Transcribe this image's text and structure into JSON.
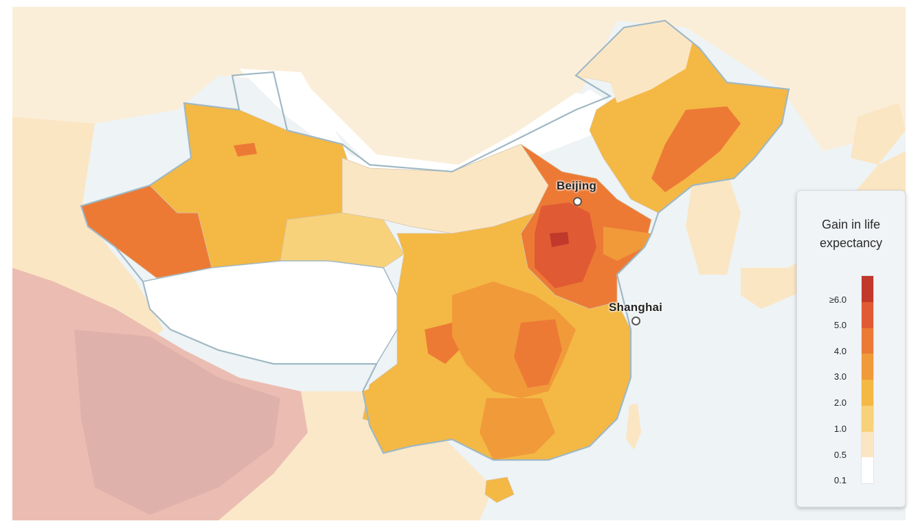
{
  "map": {
    "cities": [
      {
        "name": "Beijing"
      },
      {
        "name": "Shanghai"
      }
    ],
    "colors": {
      "sea": "#eef3f5",
      "border": "#9fb8c4",
      "india_haze": "#e9b8ad",
      "neighbor": "#fbe6c4"
    }
  },
  "legend": {
    "title": "Gain in life expectancy",
    "colors": [
      "#c0392b",
      "#e05a34",
      "#ec7a35",
      "#f19a3a",
      "#f4b844",
      "#f8d27a",
      "#fbe6c4",
      "#ffffff"
    ],
    "labels": [
      "≥6.0",
      "5.0",
      "4.0",
      "3.0",
      "2.0",
      "1.0",
      "0.5",
      "0.1"
    ]
  }
}
